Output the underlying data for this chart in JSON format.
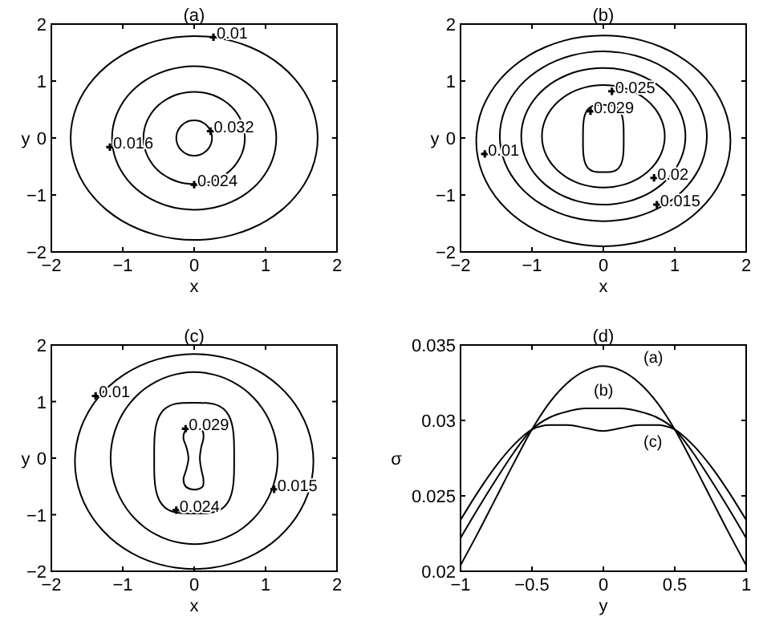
{
  "chart_data": [
    {
      "type": "scatter",
      "title": "(a)",
      "xlabel": "x",
      "ylabel": "y",
      "xlim": [
        -2,
        2
      ],
      "ylim": [
        -2,
        2
      ],
      "xticks": [
        -2,
        -1,
        0,
        1,
        2
      ],
      "yticks": [
        -2,
        -1,
        0,
        1,
        2
      ],
      "marker": "cross",
      "series": [
        {
          "color": "#000000",
          "x": [
            0.27,
            0.23,
            -1.18,
            0
          ],
          "values": [
            1.77,
            0.12,
            -0.16,
            -0.82
          ]
        }
      ],
      "annotations": [
        {
          "text": "0.01",
          "x": 0.27,
          "y": 1.77
        },
        {
          "text": "0.032",
          "x": 0.23,
          "y": 0.12
        },
        {
          "text": "0.016",
          "x": -1.18,
          "y": -0.16
        },
        {
          "text": "0.024",
          "x": 0,
          "y": -0.82
        }
      ]
    },
    {
      "type": "scatter",
      "title": "(b)",
      "xlabel": "x",
      "ylabel": "y",
      "xlim": [
        -2,
        2
      ],
      "ylim": [
        -2,
        2
      ],
      "xticks": [
        -2,
        -1,
        0,
        1,
        2
      ],
      "yticks": [
        -2,
        -1,
        0,
        1,
        2
      ],
      "marker": "cross",
      "series": [
        {
          "color": "#000000",
          "x": [
            0.12,
            -0.18,
            -1.66,
            0.71,
            0.75
          ],
          "values": [
            0.82,
            0.47,
            -0.28,
            -0.7,
            -1.17
          ]
        }
      ],
      "annotations": [
        {
          "text": "0.025",
          "x": 0.12,
          "y": 0.82
        },
        {
          "text": "0.029",
          "x": -0.18,
          "y": 0.47
        },
        {
          "text": "0.01",
          "x": -1.66,
          "y": -0.28
        },
        {
          "text": "0.02",
          "x": 0.71,
          "y": -0.7
        },
        {
          "text": "0.015",
          "x": 0.75,
          "y": -1.17
        }
      ]
    },
    {
      "type": "scatter",
      "title": "(c)",
      "xlabel": "x",
      "ylabel": "y",
      "xlim": [
        -2,
        2
      ],
      "ylim": [
        -2,
        2
      ],
      "xticks": [
        -2,
        -1,
        0,
        1,
        2
      ],
      "yticks": [
        -2,
        -1,
        0,
        1,
        2
      ],
      "marker": "cross",
      "series": [
        {
          "color": "#000000",
          "x": [
            -1.38,
            -0.12,
            1.12,
            -0.25
          ],
          "values": [
            1.1,
            0.52,
            -0.55,
            -0.92
          ]
        }
      ],
      "annotations": [
        {
          "text": "0.01",
          "x": -1.38,
          "y": 1.1
        },
        {
          "text": "0.029",
          "x": -0.12,
          "y": 0.52
        },
        {
          "text": "0.015",
          "x": 1.12,
          "y": -0.55
        },
        {
          "text": "0.024",
          "x": -0.25,
          "y": -0.92
        }
      ]
    },
    {
      "type": "line",
      "title": "(d)",
      "xlabel": "y",
      "ylabel": "σ",
      "xlim": [
        -1,
        1
      ],
      "ylim": [
        0.02,
        0.035
      ],
      "xticks": [
        -1,
        -0.5,
        0,
        0.5,
        1
      ],
      "yticks": [
        0.02,
        0.025,
        0.03,
        0.035
      ],
      "x": [
        -1,
        -0.875,
        -0.75,
        -0.625,
        -0.5,
        -0.375,
        -0.25,
        -0.125,
        0,
        0.125,
        0.25,
        0.375,
        0.5,
        0.625,
        0.75,
        0.875,
        1
      ],
      "series": [
        {
          "name": "(a)",
          "color": "#000000",
          "values": [
            0.0204,
            0.0226,
            0.0249,
            0.0272,
            0.0294,
            0.0312,
            0.0325,
            0.0333,
            0.0336,
            0.0333,
            0.0325,
            0.0312,
            0.0294,
            0.0272,
            0.0249,
            0.0226,
            0.0204
          ]
        },
        {
          "name": "(b)",
          "color": "#000000",
          "values": [
            0.0222,
            0.0242,
            0.0261,
            0.0279,
            0.0294,
            0.0302,
            0.0306,
            0.0308,
            0.0308,
            0.0308,
            0.0306,
            0.0302,
            0.0294,
            0.0279,
            0.0261,
            0.0242,
            0.0222
          ]
        },
        {
          "name": "(c)",
          "color": "#000000",
          "values": [
            0.0234,
            0.0253,
            0.027,
            0.0284,
            0.0294,
            0.0297,
            0.0297,
            0.0295,
            0.0293,
            0.0295,
            0.0297,
            0.0297,
            0.0294,
            0.0284,
            0.027,
            0.0253,
            0.0234
          ]
        }
      ]
    }
  ]
}
